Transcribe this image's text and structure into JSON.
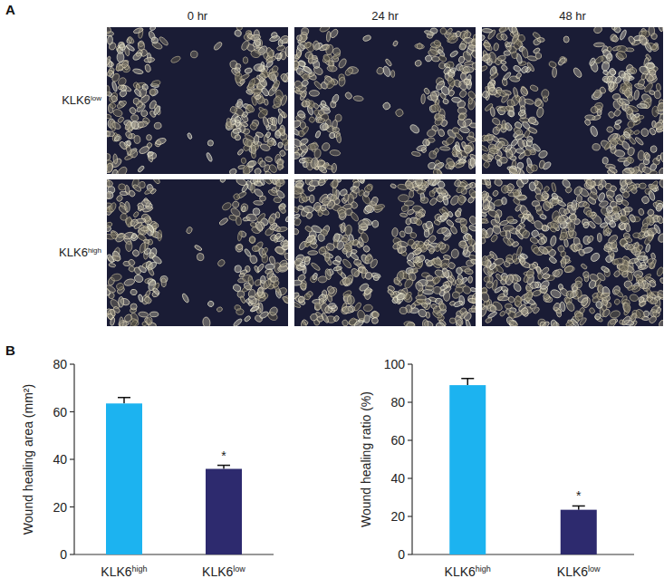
{
  "panel_a": {
    "label": "A",
    "columns": [
      "0 hr",
      "24 hr",
      "48 hr"
    ],
    "rows": [
      "KLK6low",
      "KLK6high"
    ]
  },
  "panel_b": {
    "label": "B"
  },
  "chart_data": [
    {
      "type": "bar",
      "y_label": "Wound healing area (mm²)",
      "categories": [
        "KLK6high",
        "KLK6low"
      ],
      "values": [
        63.5,
        36
      ],
      "errors": [
        2.5,
        1.5
      ],
      "significance": [
        null,
        "*"
      ],
      "colors": [
        "#1cb3f0",
        "#2d2a6e"
      ],
      "ylim": [
        0,
        80
      ],
      "yticks": [
        0,
        20,
        40,
        60,
        80
      ]
    },
    {
      "type": "bar",
      "y_label": "Wound healing ratio (%)",
      "categories": [
        "KLK6high",
        "KLK6low"
      ],
      "values": [
        89,
        23.5
      ],
      "errors": [
        3.5,
        2
      ],
      "significance": [
        null,
        "*"
      ],
      "colors": [
        "#1cb3f0",
        "#2d2a6e"
      ],
      "ylim": [
        0,
        100
      ],
      "yticks": [
        0,
        20,
        40,
        60,
        80,
        100
      ]
    }
  ]
}
